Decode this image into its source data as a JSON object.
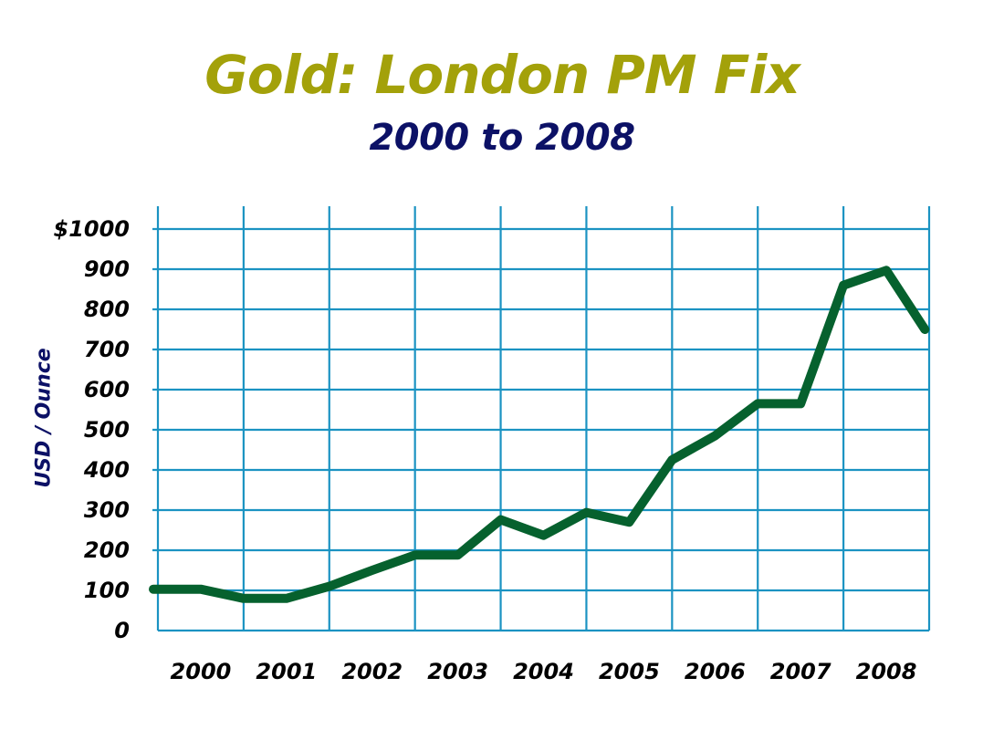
{
  "colors": {
    "title": "#a3a10a",
    "subtitle": "#0c1166",
    "grid": "#1b93c2",
    "line": "#06612e",
    "axis_label": "#0c1166",
    "tick_label": "#000000"
  },
  "chart_data": {
    "type": "line",
    "title": "Gold:  London PM Fix",
    "subtitle": "2000 to 2008",
    "xlabel": "",
    "ylabel": "USD / Ounce",
    "ylim": [
      0,
      1000
    ],
    "grid": true,
    "legend": null,
    "y_ticks": [
      "0",
      "100",
      "200",
      "300",
      "400",
      "500",
      "600",
      "700",
      "800",
      "900",
      "$1000"
    ],
    "categories": [
      "2000",
      "2001",
      "2002",
      "2003",
      "2004",
      "2005",
      "2006",
      "2007",
      "2008"
    ],
    "x": [
      2000.0,
      2000.5,
      2001.0,
      2001.5,
      2002.0,
      2002.5,
      2003.0,
      2003.5,
      2004.0,
      2004.5,
      2005.0,
      2005.5,
      2006.0,
      2006.5,
      2007.0,
      2007.5,
      2008.0,
      2008.5,
      2008.95
    ],
    "series": [
      {
        "name": "Gold London PM Fix (USD/oz)",
        "values": [
          103,
          103,
          80,
          80,
          110,
          150,
          188,
          188,
          276,
          237,
          294,
          270,
          425,
          485,
          565,
          565,
          860,
          897,
          750
        ]
      }
    ]
  }
}
